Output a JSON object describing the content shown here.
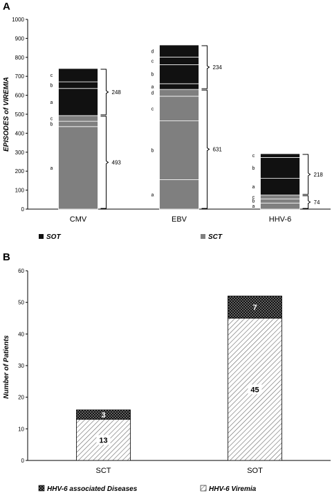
{
  "chart_data": [
    {
      "type": "bar",
      "panel_label": "A",
      "ylabel": "EPISODES of VIREMIA",
      "ylim": [
        0,
        1000
      ],
      "yticks": [
        0,
        100,
        200,
        300,
        400,
        500,
        600,
        700,
        800,
        900,
        1000
      ],
      "categories": [
        "CMV",
        "EBV",
        "HHV-6"
      ],
      "series": [
        {
          "name": "SCT",
          "color": "#7f7f7f",
          "totals": [
            493,
            631,
            74
          ]
        },
        {
          "name": "SOT",
          "color": "#111111",
          "totals": [
            248,
            234,
            218
          ]
        }
      ],
      "segments": {
        "CMV": {
          "SCT": [
            {
              "label": "a",
              "value": 435
            },
            {
              "label": "b",
              "value": 28
            },
            {
              "label": "c",
              "value": 30
            }
          ],
          "SOT": [
            {
              "label": "a",
              "value": 143
            },
            {
              "label": "b",
              "value": 35
            },
            {
              "label": "c",
              "value": 70
            }
          ]
        },
        "EBV": {
          "SCT": [
            {
              "label": "a",
              "value": 155
            },
            {
              "label": "b",
              "value": 310
            },
            {
              "label": "c",
              "value": 130
            },
            {
              "label": "d",
              "value": 36
            }
          ],
          "SOT": [
            {
              "label": "a",
              "value": 30
            },
            {
              "label": "b",
              "value": 100
            },
            {
              "label": "c",
              "value": 40
            },
            {
              "label": "d",
              "value": 64
            }
          ]
        },
        "HHV-6": {
          "SCT": [
            {
              "label": "a",
              "value": 32
            },
            {
              "label": "b",
              "value": 22
            },
            {
              "label": "c",
              "value": 20
            }
          ],
          "SOT": [
            {
              "label": "a",
              "value": 88
            },
            {
              "label": "b",
              "value": 110
            },
            {
              "label": "c",
              "value": 20
            }
          ]
        }
      },
      "legend": [
        "SOT",
        "SCT"
      ],
      "legend_position": "bottom"
    },
    {
      "type": "bar",
      "panel_label": "B",
      "ylabel": "Number of Patients",
      "ylim": [
        0,
        60
      ],
      "yticks": [
        0,
        10,
        20,
        30,
        40,
        50,
        60
      ],
      "categories": [
        "SCT",
        "SOT"
      ],
      "series": [
        {
          "name": "HHV-6 Viremia",
          "pattern": "hatched",
          "values": [
            13,
            45
          ]
        },
        {
          "name": "HHV-6 associated Diseases",
          "pattern": "dotted-black",
          "values": [
            3,
            7
          ]
        }
      ],
      "legend": [
        "HHV-6 associated Diseases",
        "HHV-6 Viremia"
      ],
      "legend_position": "bottom"
    }
  ]
}
